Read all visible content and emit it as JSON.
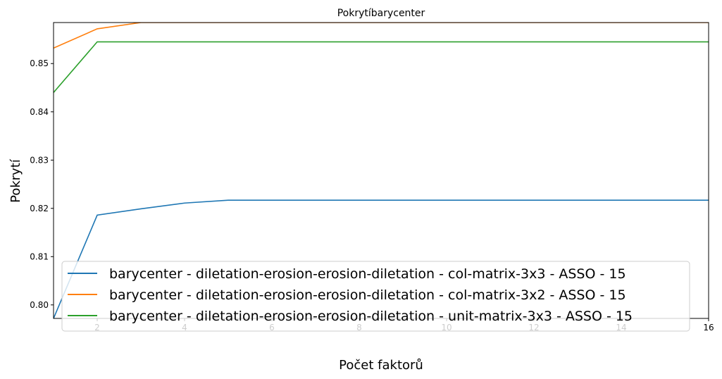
{
  "chart_data": {
    "type": "line",
    "title": "Pokrytíbarycenter",
    "xlabel": "Počet faktorů",
    "ylabel": "Pokrytí",
    "xlim": [
      1,
      16
    ],
    "ylim": [
      0.7972,
      0.8585
    ],
    "xticks": [
      2,
      4,
      6,
      8,
      10,
      12,
      14,
      16
    ],
    "yticks": [
      0.8,
      0.81,
      0.82,
      0.83,
      0.84,
      0.85
    ],
    "ytick_labels": [
      "0.80",
      "0.81",
      "0.82",
      "0.83",
      "0.84",
      "0.85"
    ],
    "legend_placement": "lower-left",
    "grid": false,
    "x": [
      1,
      2,
      3,
      4,
      5,
      6,
      7,
      8,
      9,
      10,
      11,
      12,
      13,
      14,
      15,
      16
    ],
    "series": [
      {
        "name": "barycenter - diletation-erosion-erosion-diletation - col-matrix-3x3 - ASSO - 15",
        "color": "#1f77b4",
        "values": [
          0.7972,
          0.8186,
          0.8199,
          0.8211,
          0.8217,
          0.8217,
          0.8217,
          0.8217,
          0.8217,
          0.8217,
          0.8217,
          0.8217,
          0.8217,
          0.8217,
          0.8217,
          0.8217
        ]
      },
      {
        "name": "barycenter - diletation-erosion-erosion-diletation - col-matrix-3x2 - ASSO - 15",
        "color": "#ff7f0e",
        "values": [
          0.8532,
          0.8572,
          0.8585,
          0.8585,
          0.8585,
          0.8585,
          0.8585,
          0.8585,
          0.8585,
          0.8585,
          0.8585,
          0.8585,
          0.8585,
          0.8585,
          0.8585,
          0.8585
        ]
      },
      {
        "name": "barycenter - diletation-erosion-erosion-diletation - unit-matrix-3x3 - ASSO - 15",
        "color": "#2ca02c",
        "values": [
          0.844,
          0.8545,
          0.8545,
          0.8545,
          0.8545,
          0.8545,
          0.8545,
          0.8545,
          0.8545,
          0.8545,
          0.8545,
          0.8545,
          0.8545,
          0.8545,
          0.8545,
          0.8545
        ]
      }
    ]
  }
}
